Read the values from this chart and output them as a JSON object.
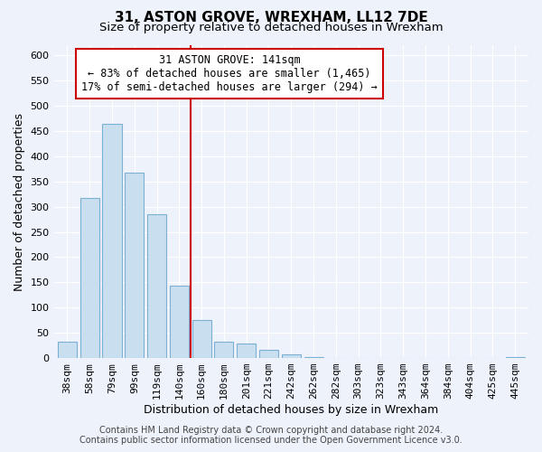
{
  "title": "31, ASTON GROVE, WREXHAM, LL12 7DE",
  "subtitle": "Size of property relative to detached houses in Wrexham",
  "xlabel": "Distribution of detached houses by size in Wrexham",
  "ylabel": "Number of detached properties",
  "bar_labels": [
    "38sqm",
    "58sqm",
    "79sqm",
    "99sqm",
    "119sqm",
    "140sqm",
    "160sqm",
    "180sqm",
    "201sqm",
    "221sqm",
    "242sqm",
    "262sqm",
    "282sqm",
    "303sqm",
    "323sqm",
    "343sqm",
    "364sqm",
    "384sqm",
    "404sqm",
    "425sqm",
    "445sqm"
  ],
  "bar_values": [
    32,
    317,
    465,
    367,
    285,
    143,
    75,
    32,
    29,
    17,
    8,
    2,
    0,
    0,
    0,
    0,
    0,
    0,
    0,
    0,
    2
  ],
  "bar_color": "#c9dff0",
  "bar_edge_color": "#7ab0d4",
  "highlight_bar_index": 5,
  "highlight_color": "#cc0000",
  "annotation_title": "31 ASTON GROVE: 141sqm",
  "annotation_line1": "← 83% of detached houses are smaller (1,465)",
  "annotation_line2": "17% of semi-detached houses are larger (294) →",
  "annotation_box_color": "#ffffff",
  "annotation_box_edge_color": "#cc0000",
  "vline_bar_index": 5,
  "ylim": [
    0,
    620
  ],
  "yticks": [
    0,
    50,
    100,
    150,
    200,
    250,
    300,
    350,
    400,
    450,
    500,
    550,
    600
  ],
  "footer_line1": "Contains HM Land Registry data © Crown copyright and database right 2024.",
  "footer_line2": "Contains public sector information licensed under the Open Government Licence v3.0.",
  "background_color": "#eef2fb",
  "plot_bg_color": "#eef2fb",
  "title_fontsize": 11,
  "subtitle_fontsize": 9.5,
  "axis_label_fontsize": 9,
  "tick_fontsize": 8,
  "annotation_fontsize": 8.5,
  "footer_fontsize": 7
}
